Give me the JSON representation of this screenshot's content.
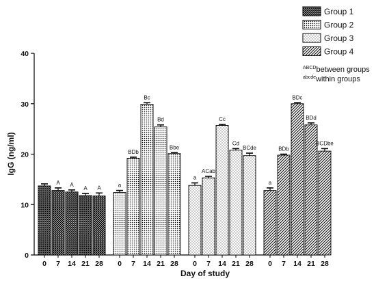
{
  "chart_data": {
    "type": "bar",
    "xlabel": "Day of study",
    "ylabel": "IgG (ng/ml)",
    "ylim": [
      0,
      40
    ],
    "yticks": [
      0,
      10,
      20,
      30,
      40
    ],
    "grid": false,
    "legend_position": "top-right",
    "categories": [
      "0",
      "7",
      "14",
      "21",
      "28"
    ],
    "series": [
      {
        "name": "Group 1",
        "pattern": "crosshatch-dense",
        "values": [
          13.7,
          12.8,
          12.5,
          11.8,
          11.7
        ],
        "errors": [
          0.4,
          0.5,
          0.4,
          0.4,
          0.6
        ],
        "labels": [
          "",
          "A",
          "A",
          "A",
          "A"
        ]
      },
      {
        "name": "Group 2",
        "pattern": "dots-dense",
        "values": [
          12.4,
          19.2,
          29.9,
          25.4,
          20.1
        ],
        "errors": [
          0.4,
          0.2,
          0.3,
          0.4,
          0.2
        ],
        "labels": [
          "a",
          "BDb",
          "Bc",
          "Bd",
          "Bbe"
        ]
      },
      {
        "name": "Group 3",
        "pattern": "dots-sparse",
        "values": [
          13.8,
          15.3,
          25.7,
          20.8,
          19.7
        ],
        "errors": [
          0.5,
          0.3,
          0.2,
          0.3,
          0.5
        ],
        "labels": [
          "a",
          "ACab",
          "Cc",
          "Cd",
          "BCde"
        ]
      },
      {
        "name": "Group 4",
        "pattern": "diagonal-lines",
        "values": [
          12.8,
          19.8,
          30.0,
          25.8,
          20.6
        ],
        "errors": [
          0.5,
          0.2,
          0.2,
          0.4,
          0.5
        ],
        "labels": [
          "a",
          "BDb",
          "BDc",
          "BDd",
          "BCDbe"
        ]
      }
    ],
    "annotations": [
      {
        "sup": "ABCD",
        "text": "between groups"
      },
      {
        "sup": "abcde",
        "text": "within groups"
      }
    ]
  },
  "colors": {
    "bar_outline": "#000000",
    "pattern_ink": "#000000",
    "background": "#ffffff"
  }
}
